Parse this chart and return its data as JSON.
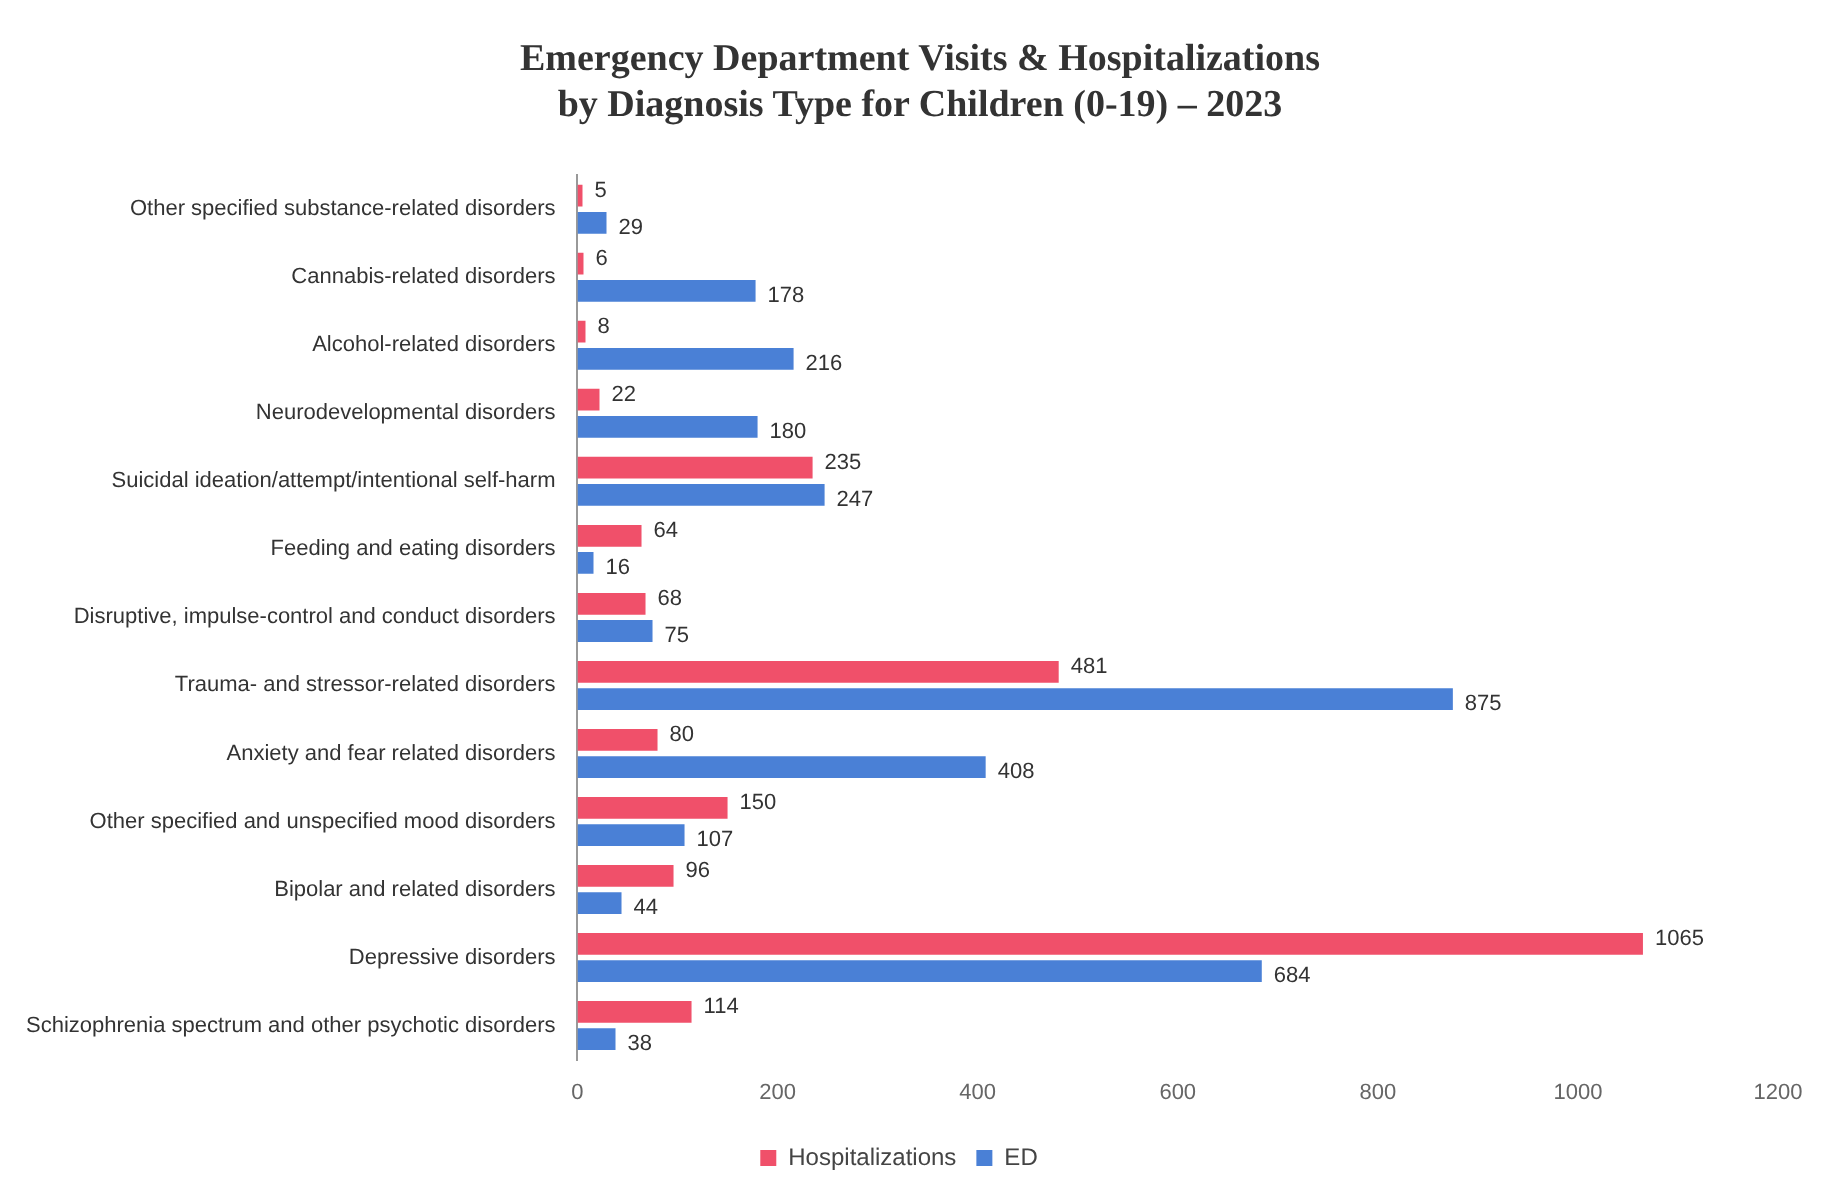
{
  "chart_data": {
    "type": "bar",
    "orientation": "horizontal",
    "title": "Emergency Department Visits & Hospitalizations by Diagnosis Type for Children (0-19) – 2023",
    "categories": [
      "Other specified substance-related disorders",
      "Cannabis-related disorders",
      "Alcohol-related disorders",
      "Neurodevelopmental disorders",
      "Suicidal ideation/attempt/intentional self-harm",
      "Feeding and eating disorders",
      "Disruptive, impulse-control and conduct disorders",
      "Trauma- and stressor-related disorders",
      "Anxiety and fear related disorders",
      "Other specified and unspecified mood disorders",
      "Bipolar and related disorders",
      "Depressive disorders",
      "Schizophrenia spectrum and other psychotic disorders"
    ],
    "series": [
      {
        "name": "Hospitalizations",
        "color": "#f0506a",
        "values": [
          5,
          6,
          8,
          22,
          235,
          64,
          68,
          481,
          80,
          150,
          96,
          1065,
          114
        ]
      },
      {
        "name": "ED",
        "color": "#4a80d6",
        "values": [
          29,
          178,
          216,
          180,
          247,
          16,
          75,
          875,
          408,
          107,
          44,
          684,
          38
        ]
      }
    ],
    "xlim": [
      0,
      1200
    ],
    "xticks": [
      0,
      200,
      400,
      600,
      800,
      1000,
      1200
    ],
    "grid": false,
    "legend": "bottom",
    "data_labels": true
  }
}
